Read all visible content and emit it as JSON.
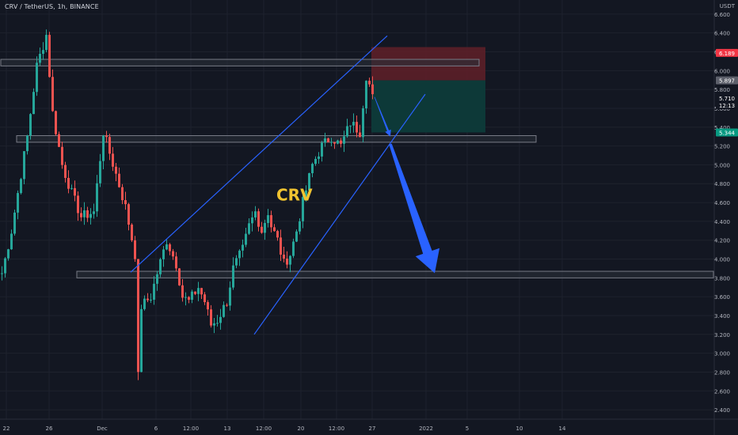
{
  "header": {
    "symbol_line": "CRV / TetherUS, 1h, BINANCE"
  },
  "currency_label": "USDT",
  "annotation_label": "CRV",
  "colors": {
    "background": "#131722",
    "grid": "#1e222d",
    "axis_text": "#b2b5be",
    "candle_up": "#26a69a",
    "candle_down": "#ef5350",
    "trendline": "#2962ff",
    "zone_fill": "#2a2e39",
    "zone_border": "#787b86",
    "label_color": "#f0c330",
    "stop_zone": "#5c1f28",
    "target_zone": "#0d3b3a",
    "arrow": "#2962ff"
  },
  "price_badges": [
    {
      "value": "6.189",
      "color": "#f23645"
    },
    {
      "value": "5.897",
      "color": "#5d606b"
    },
    {
      "value": "5.710",
      "color": "#131722",
      "sub": "12:13"
    },
    {
      "value": "5.344",
      "color": "#089981"
    }
  ],
  "chart_data": {
    "type": "candlestick",
    "title": "CRV / TetherUS, 1h, BINANCE",
    "ylabel": "USDT",
    "ylim": [
      2.3,
      6.75
    ],
    "y_ticks": [
      "2.400",
      "2.600",
      "2.800",
      "3.000",
      "3.200",
      "3.400",
      "3.600",
      "3.800",
      "4.000",
      "4.200",
      "4.400",
      "4.600",
      "4.800",
      "5.000",
      "5.200",
      "5.400",
      "5.600",
      "5.800",
      "6.000",
      "6.200",
      "6.400",
      "6.600"
    ],
    "x_ticks": [
      "22",
      "26",
      "Dec",
      "6",
      "12:00",
      "13",
      "12:00",
      "20",
      "12:00",
      "27",
      "2022",
      "5",
      "10",
      "14"
    ],
    "waypoints": [
      [
        0,
        3.85
      ],
      [
        3,
        4.3
      ],
      [
        5,
        4.7
      ],
      [
        8,
        5.3
      ],
      [
        11,
        6.05
      ],
      [
        14,
        6.38
      ],
      [
        16,
        5.55
      ],
      [
        19,
        5.0
      ],
      [
        22,
        4.7
      ],
      [
        25,
        4.45
      ],
      [
        29,
        4.5
      ],
      [
        32,
        5.35
      ],
      [
        36,
        4.9
      ],
      [
        39,
        4.55
      ],
      [
        42,
        4.05
      ],
      [
        43,
        2.75
      ],
      [
        44,
        3.5
      ],
      [
        47,
        3.6
      ],
      [
        49,
        3.85
      ],
      [
        52,
        4.2
      ],
      [
        55,
        3.95
      ],
      [
        57,
        3.6
      ],
      [
        59,
        3.55
      ],
      [
        62,
        3.7
      ],
      [
        64,
        3.55
      ],
      [
        66,
        3.3
      ],
      [
        68,
        3.35
      ],
      [
        71,
        3.55
      ],
      [
        73,
        3.9
      ],
      [
        76,
        4.1
      ],
      [
        78,
        4.35
      ],
      [
        80,
        4.5
      ],
      [
        82,
        4.3
      ],
      [
        84,
        4.5
      ],
      [
        85,
        4.35
      ],
      [
        87,
        4.2
      ],
      [
        89,
        3.95
      ],
      [
        91,
        4.05
      ],
      [
        93,
        4.3
      ],
      [
        95,
        4.6
      ],
      [
        98,
        5.0
      ],
      [
        101,
        5.2
      ],
      [
        104,
        5.3
      ],
      [
        107,
        5.2
      ],
      [
        110,
        5.45
      ],
      [
        113,
        5.35
      ],
      [
        115,
        5.95
      ],
      [
        117,
        5.75
      ]
    ],
    "zones": [
      {
        "name": "zone-top",
        "y_low": 6.05,
        "y_high": 6.12,
        "x_from": 0,
        "x_to": 151
      },
      {
        "name": "zone-mid",
        "y_low": 5.24,
        "y_high": 5.31,
        "x_from": 5,
        "x_to": 169
      },
      {
        "name": "zone-bottom",
        "y_low": 3.8,
        "y_high": 3.87,
        "x_from": 24,
        "x_to": 225
      }
    ],
    "trendlines": [
      {
        "name": "upper-channel-line",
        "from": [
          41,
          3.86
        ],
        "to": [
          122,
          6.37
        ]
      },
      {
        "name": "lower-channel-line",
        "from": [
          80,
          3.2
        ],
        "to": [
          134,
          5.75
        ]
      }
    ],
    "position": {
      "x_from": 117,
      "x_to": 153,
      "stop_top": 6.25,
      "entry": 5.897,
      "target": 5.344
    },
    "arrows": [
      {
        "name": "small-down-arrow",
        "from": [
          118,
          5.72
        ],
        "to": [
          123,
          5.3
        ]
      },
      {
        "name": "big-down-arrow",
        "from": [
          123,
          5.22
        ],
        "to": [
          137,
          3.85
        ]
      }
    ],
    "label_point": [
      92,
      4.62
    ]
  }
}
